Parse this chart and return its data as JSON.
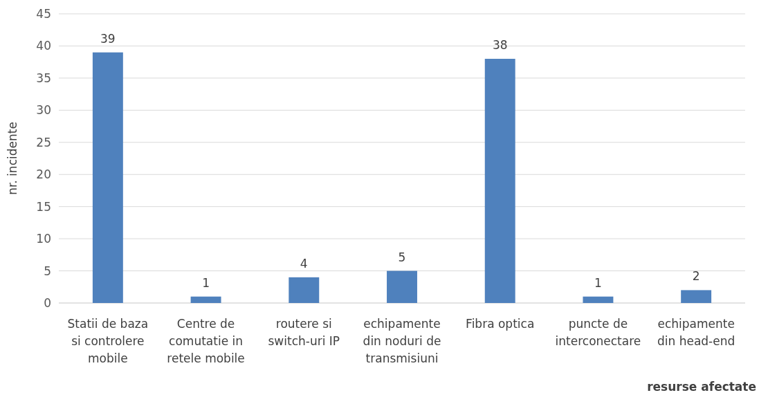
{
  "chart_data": {
    "type": "bar",
    "xlabel": "resurse afectate",
    "ylabel": "nr. incidente",
    "categories": [
      "Statii de baza si controlere mobile",
      "Centre de comutatie in retele mobile",
      "routere si switch-uri IP",
      "echipamente din noduri de transmisiuni",
      "Fibra optica",
      "puncte de interconectare",
      "echipamente din head-end"
    ],
    "values": [
      39,
      1,
      4,
      5,
      38,
      1,
      2
    ],
    "color": "#4f81bd",
    "ylim": [
      0,
      45
    ],
    "yticks": [
      0,
      5,
      10,
      15,
      20,
      25,
      30,
      35,
      40,
      45
    ],
    "grid": "y",
    "data_labels": true
  }
}
